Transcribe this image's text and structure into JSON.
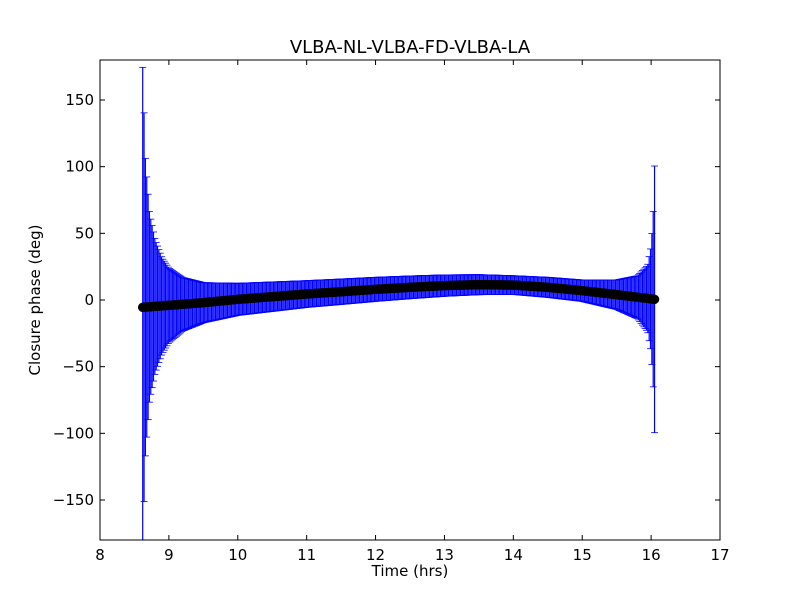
{
  "chart_data": {
    "type": "scatter",
    "title": "VLBA-NL-VLBA-FD-VLBA-LA",
    "xlabel": "Time (hrs)",
    "ylabel": "Closure phase (deg)",
    "xlim": [
      8,
      17
    ],
    "ylim": [
      -180,
      180
    ],
    "x_ticks": [
      "8",
      "9",
      "10",
      "11",
      "12",
      "13",
      "14",
      "15",
      "16",
      "17"
    ],
    "y_ticks": [
      "−150",
      "−100",
      "−50",
      "0",
      "50",
      "100",
      "150"
    ],
    "grid": false,
    "legend": "none",
    "colors": {
      "points": "#000000",
      "error_bars": "#0000ff"
    },
    "series": [
      {
        "time_range_hrs": [
          8.62,
          16.05
        ],
        "phase_points": [
          [
            8.62,
            -5.5
          ],
          [
            9.0,
            -4.0
          ],
          [
            9.5,
            -2.0
          ],
          [
            10.0,
            0.5
          ],
          [
            10.5,
            2.5
          ],
          [
            11.0,
            4.5
          ],
          [
            11.5,
            6.2
          ],
          [
            12.0,
            8.0
          ],
          [
            12.5,
            9.5
          ],
          [
            13.0,
            10.8
          ],
          [
            13.5,
            11.5
          ],
          [
            14.0,
            11.2
          ],
          [
            14.5,
            9.5
          ],
          [
            15.0,
            7.0
          ],
          [
            15.5,
            4.0
          ],
          [
            16.05,
            0.5
          ]
        ],
        "error_half_width": [
          [
            8.62,
            180
          ],
          [
            8.66,
            110
          ],
          [
            8.72,
            70
          ],
          [
            8.8,
            50
          ],
          [
            8.9,
            36
          ],
          [
            9.0,
            28
          ],
          [
            9.2,
            20
          ],
          [
            9.5,
            15
          ],
          [
            10.0,
            12
          ],
          [
            11.0,
            10
          ],
          [
            12.0,
            9
          ],
          [
            13.0,
            8
          ],
          [
            14.0,
            7
          ],
          [
            15.0,
            8
          ],
          [
            15.5,
            11
          ],
          [
            15.8,
            16
          ],
          [
            15.95,
            25
          ],
          [
            16.0,
            40
          ],
          [
            16.03,
            65
          ],
          [
            16.05,
            100
          ]
        ]
      }
    ]
  }
}
